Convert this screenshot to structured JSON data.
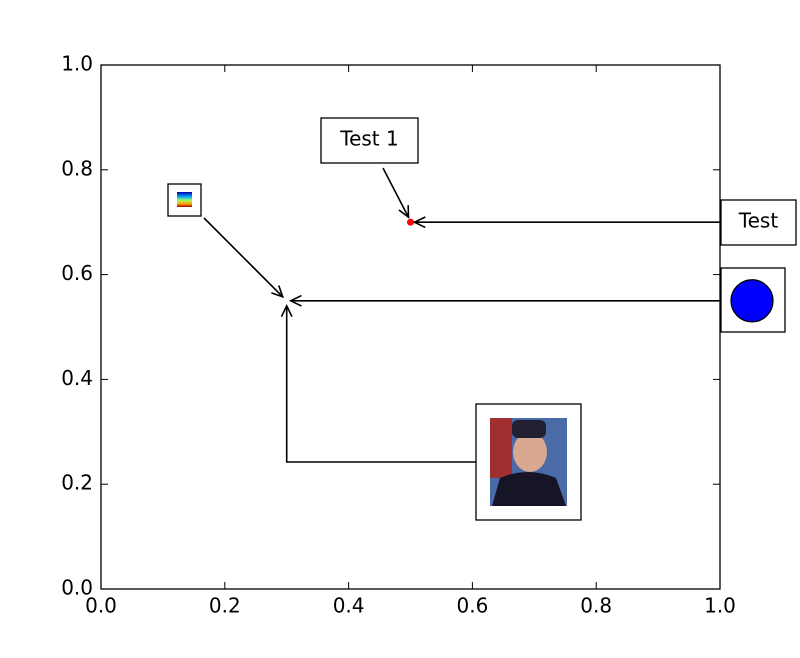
{
  "chart_data": {
    "type": "scatter",
    "x": [
      0.5
    ],
    "values": [
      0.7
    ],
    "color": "#ff0000",
    "xlim": [
      0,
      1
    ],
    "ylim": [
      0,
      1
    ],
    "xticks": [
      {
        "value": 0,
        "label": "0.0"
      },
      0.2,
      0.4,
      0.6,
      0.8,
      {
        "value": 1,
        "label": "1.0"
      }
    ],
    "yticks": [
      {
        "value": 0,
        "label": "0.0"
      },
      0.2,
      0.4,
      0.6,
      0.8,
      {
        "value": 1,
        "label": "1.0"
      }
    ],
    "annotations": [
      {
        "text": "Test 1",
        "xy": [
          0.5,
          0.7
        ]
      },
      {
        "text": "Test",
        "xy": [
          0.5,
          0.7
        ]
      },
      {
        "xy": [
          0.3,
          0.55
        ]
      }
    ],
    "circle_color": "#0000ff"
  }
}
